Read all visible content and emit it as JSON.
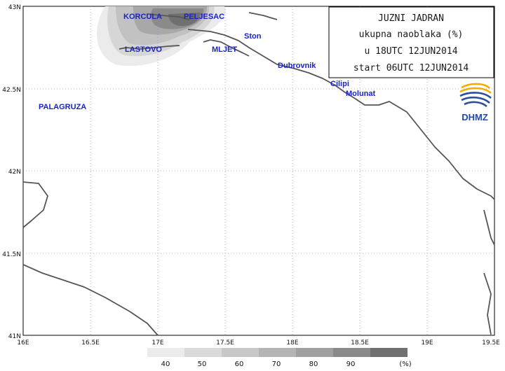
{
  "title": {
    "line1": "JUZNI JADRAN",
    "line2": "ukupna naoblaka (%)",
    "line3": "u 18UTC 12JUN2014",
    "line4": "start 06UTC 12JUN2014"
  },
  "logo": {
    "text": "DHMZ"
  },
  "axes": {
    "lat_labels": [
      "43N",
      "42.5N",
      "42N",
      "41.5N",
      "41N"
    ],
    "lon_labels": [
      "16E",
      "16.5E",
      "17E",
      "17.5E",
      "18E",
      "18.5E",
      "19E",
      "19.5E"
    ]
  },
  "places": [
    {
      "name": "KORCULA"
    },
    {
      "name": "PELJESAC"
    },
    {
      "name": "Ston"
    },
    {
      "name": "LASTOVO"
    },
    {
      "name": "MLJET"
    },
    {
      "name": "Dubrovnik"
    },
    {
      "name": "Cilipi"
    },
    {
      "name": "Molunat"
    },
    {
      "name": "PALAGRUZA"
    }
  ],
  "legend": {
    "values": [
      "40",
      "50",
      "60",
      "70",
      "80",
      "90"
    ],
    "unit": "(%)",
    "colors": [
      "#ebebeb",
      "#dadada",
      "#c8c8c8",
      "#b4b4b4",
      "#a0a0a0",
      "#8a8a8a",
      "#707070"
    ]
  },
  "colors": {
    "coastline": "#555555",
    "place_label": "#1a22cc",
    "grid": "#7777cc"
  }
}
